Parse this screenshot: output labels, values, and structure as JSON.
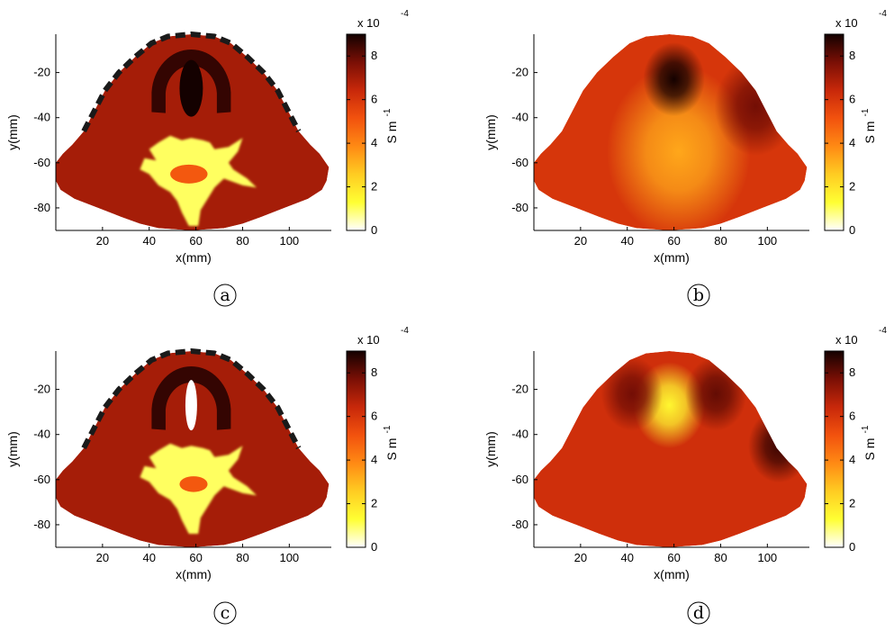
{
  "colors": {
    "colormap": [
      "#ffffff",
      "#ffff33",
      "#ffcc22",
      "#ff8a14",
      "#f2520e",
      "#c8280a",
      "#7a0f05",
      "#140100"
    ],
    "boundary_dash": "#1a1a1a"
  },
  "chart_data": [
    {
      "panel_label": "a",
      "type": "heatmap",
      "xlabel": "x(mm)",
      "ylabel": "y(mm)",
      "xlim": [
        0,
        118
      ],
      "ylim": [
        -90,
        -3
      ],
      "xticks": [
        20,
        40,
        60,
        80,
        100
      ],
      "yticks": [
        -20,
        -40,
        -60,
        -80
      ],
      "colorbar": {
        "label": "S m",
        "label_superscript": "-1",
        "multiplier": "x 10",
        "multiplier_exponent": "-4",
        "range": [
          0,
          9
        ],
        "ticks": [
          0,
          2,
          4,
          6,
          8
        ]
      },
      "boundary_electrodes": true,
      "regions": [
        {
          "kind": "background",
          "value": 7.0
        },
        {
          "kind": "arc",
          "cx": 58,
          "cy": -30,
          "ro": 17,
          "ri": 11,
          "value": 8.6
        },
        {
          "kind": "ellipse",
          "cx": 58,
          "cy": -27,
          "rx": 5,
          "ry": 9,
          "value": 9.0
        },
        {
          "kind": "blob",
          "cx": 58,
          "cy": -62,
          "value": 1.0
        },
        {
          "kind": "ellipse",
          "cx": 57,
          "cy": -65,
          "rx": 8,
          "ry": 3,
          "value": 5.0
        }
      ]
    },
    {
      "panel_label": "b",
      "type": "heatmap",
      "xlabel": "x(mm)",
      "ylabel": "y(mm)",
      "xlim": [
        0,
        118
      ],
      "ylim": [
        -90,
        -3
      ],
      "xticks": [
        20,
        40,
        60,
        80,
        100
      ],
      "yticks": [
        -20,
        -40,
        -60,
        -80
      ],
      "colorbar": {
        "label": "S m",
        "label_superscript": "-1",
        "multiplier": "x 10",
        "multiplier_exponent": "-4",
        "range": [
          0,
          9
        ],
        "ticks": [
          0,
          2,
          4,
          6,
          8
        ]
      },
      "boundary_electrodes": false,
      "regions": [
        {
          "kind": "background",
          "value": 6.0
        },
        {
          "kind": "gauss",
          "cx": 62,
          "cy": -55,
          "s": 14,
          "value": 3.3
        },
        {
          "kind": "gauss",
          "cx": 60,
          "cy": -23,
          "s": 6,
          "value": 9.0
        },
        {
          "kind": "gauss",
          "cx": 95,
          "cy": -35,
          "s": 8,
          "value": 7.8
        }
      ]
    },
    {
      "panel_label": "c",
      "type": "heatmap",
      "xlabel": "x(mm)",
      "ylabel": "y(mm)",
      "xlim": [
        0,
        118
      ],
      "ylim": [
        -90,
        -3
      ],
      "xticks": [
        20,
        40,
        60,
        80,
        100
      ],
      "yticks": [
        -20,
        -40,
        -60,
        -80
      ],
      "colorbar": {
        "label": "S m",
        "label_superscript": "-1",
        "multiplier": "x 10",
        "multiplier_exponent": "-4",
        "range": [
          0,
          9
        ],
        "ticks": [
          0,
          2,
          4,
          6,
          8
        ]
      },
      "boundary_electrodes": true,
      "regions": [
        {
          "kind": "background",
          "value": 7.0
        },
        {
          "kind": "arc",
          "cx": 58,
          "cy": -30,
          "ro": 17,
          "ri": 11,
          "value": 8.6
        },
        {
          "kind": "ellipse",
          "cx": 58,
          "cy": -27,
          "rx": 2.5,
          "ry": 8,
          "value": 0
        },
        {
          "kind": "blob",
          "cx": 58,
          "cy": -58,
          "value": 1.0
        },
        {
          "kind": "ellipse",
          "cx": 59,
          "cy": -62,
          "rx": 6,
          "ry": 2.5,
          "value": 5.0
        }
      ]
    },
    {
      "panel_label": "d",
      "type": "heatmap",
      "xlabel": "x(mm)",
      "ylabel": "y(mm)",
      "xlim": [
        0,
        118
      ],
      "ylim": [
        -90,
        -3
      ],
      "xticks": [
        20,
        40,
        60,
        80,
        100
      ],
      "yticks": [
        -20,
        -40,
        -60,
        -80
      ],
      "colorbar": {
        "label": "S m",
        "label_superscript": "-1",
        "multiplier": "x 10",
        "multiplier_exponent": "-4",
        "range": [
          0,
          9
        ],
        "ticks": [
          0,
          2,
          4,
          6,
          8
        ]
      },
      "boundary_electrodes": false,
      "regions": [
        {
          "kind": "background",
          "value": 6.2
        },
        {
          "kind": "gauss",
          "cx": 58,
          "cy": -27,
          "s": 7,
          "value": 1.5
        },
        {
          "kind": "gauss",
          "cx": 105,
          "cy": -45,
          "s": 6,
          "value": 8.5
        },
        {
          "kind": "gauss",
          "cx": 78,
          "cy": -22,
          "s": 6,
          "value": 8.0
        },
        {
          "kind": "gauss",
          "cx": 42,
          "cy": -22,
          "s": 6,
          "value": 7.8
        }
      ]
    }
  ]
}
